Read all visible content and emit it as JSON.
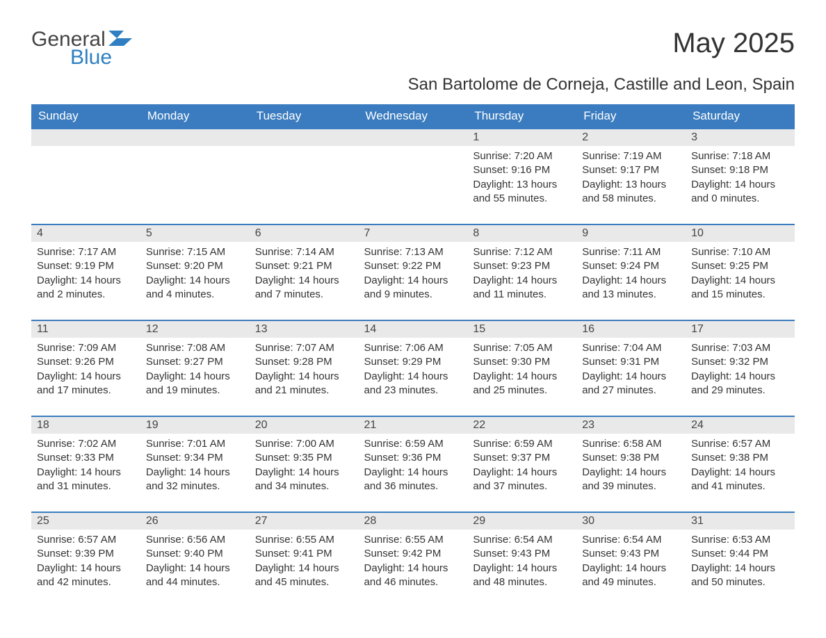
{
  "logo": {
    "text_general": "General",
    "text_blue": "Blue"
  },
  "title": "May 2025",
  "subtitle": "San Bartolome de Corneja, Castille and Leon, Spain",
  "colors": {
    "header_bg": "#3a7cbf",
    "header_text": "#ffffff",
    "daynum_bg": "#e9e9e9",
    "body_text": "#333333",
    "week_border": "#3a7cbf",
    "logo_gray": "#444444",
    "logo_blue": "#2f7fc2",
    "page_bg": "#ffffff"
  },
  "day_headers": [
    "Sunday",
    "Monday",
    "Tuesday",
    "Wednesday",
    "Thursday",
    "Friday",
    "Saturday"
  ],
  "weeks": [
    [
      {
        "day": "",
        "sunrise": "",
        "sunset": "",
        "daylight": ""
      },
      {
        "day": "",
        "sunrise": "",
        "sunset": "",
        "daylight": ""
      },
      {
        "day": "",
        "sunrise": "",
        "sunset": "",
        "daylight": ""
      },
      {
        "day": "",
        "sunrise": "",
        "sunset": "",
        "daylight": ""
      },
      {
        "day": "1",
        "sunrise": "Sunrise: 7:20 AM",
        "sunset": "Sunset: 9:16 PM",
        "daylight": "Daylight: 13 hours and 55 minutes."
      },
      {
        "day": "2",
        "sunrise": "Sunrise: 7:19 AM",
        "sunset": "Sunset: 9:17 PM",
        "daylight": "Daylight: 13 hours and 58 minutes."
      },
      {
        "day": "3",
        "sunrise": "Sunrise: 7:18 AM",
        "sunset": "Sunset: 9:18 PM",
        "daylight": "Daylight: 14 hours and 0 minutes."
      }
    ],
    [
      {
        "day": "4",
        "sunrise": "Sunrise: 7:17 AM",
        "sunset": "Sunset: 9:19 PM",
        "daylight": "Daylight: 14 hours and 2 minutes."
      },
      {
        "day": "5",
        "sunrise": "Sunrise: 7:15 AM",
        "sunset": "Sunset: 9:20 PM",
        "daylight": "Daylight: 14 hours and 4 minutes."
      },
      {
        "day": "6",
        "sunrise": "Sunrise: 7:14 AM",
        "sunset": "Sunset: 9:21 PM",
        "daylight": "Daylight: 14 hours and 7 minutes."
      },
      {
        "day": "7",
        "sunrise": "Sunrise: 7:13 AM",
        "sunset": "Sunset: 9:22 PM",
        "daylight": "Daylight: 14 hours and 9 minutes."
      },
      {
        "day": "8",
        "sunrise": "Sunrise: 7:12 AM",
        "sunset": "Sunset: 9:23 PM",
        "daylight": "Daylight: 14 hours and 11 minutes."
      },
      {
        "day": "9",
        "sunrise": "Sunrise: 7:11 AM",
        "sunset": "Sunset: 9:24 PM",
        "daylight": "Daylight: 14 hours and 13 minutes."
      },
      {
        "day": "10",
        "sunrise": "Sunrise: 7:10 AM",
        "sunset": "Sunset: 9:25 PM",
        "daylight": "Daylight: 14 hours and 15 minutes."
      }
    ],
    [
      {
        "day": "11",
        "sunrise": "Sunrise: 7:09 AM",
        "sunset": "Sunset: 9:26 PM",
        "daylight": "Daylight: 14 hours and 17 minutes."
      },
      {
        "day": "12",
        "sunrise": "Sunrise: 7:08 AM",
        "sunset": "Sunset: 9:27 PM",
        "daylight": "Daylight: 14 hours and 19 minutes."
      },
      {
        "day": "13",
        "sunrise": "Sunrise: 7:07 AM",
        "sunset": "Sunset: 9:28 PM",
        "daylight": "Daylight: 14 hours and 21 minutes."
      },
      {
        "day": "14",
        "sunrise": "Sunrise: 7:06 AM",
        "sunset": "Sunset: 9:29 PM",
        "daylight": "Daylight: 14 hours and 23 minutes."
      },
      {
        "day": "15",
        "sunrise": "Sunrise: 7:05 AM",
        "sunset": "Sunset: 9:30 PM",
        "daylight": "Daylight: 14 hours and 25 minutes."
      },
      {
        "day": "16",
        "sunrise": "Sunrise: 7:04 AM",
        "sunset": "Sunset: 9:31 PM",
        "daylight": "Daylight: 14 hours and 27 minutes."
      },
      {
        "day": "17",
        "sunrise": "Sunrise: 7:03 AM",
        "sunset": "Sunset: 9:32 PM",
        "daylight": "Daylight: 14 hours and 29 minutes."
      }
    ],
    [
      {
        "day": "18",
        "sunrise": "Sunrise: 7:02 AM",
        "sunset": "Sunset: 9:33 PM",
        "daylight": "Daylight: 14 hours and 31 minutes."
      },
      {
        "day": "19",
        "sunrise": "Sunrise: 7:01 AM",
        "sunset": "Sunset: 9:34 PM",
        "daylight": "Daylight: 14 hours and 32 minutes."
      },
      {
        "day": "20",
        "sunrise": "Sunrise: 7:00 AM",
        "sunset": "Sunset: 9:35 PM",
        "daylight": "Daylight: 14 hours and 34 minutes."
      },
      {
        "day": "21",
        "sunrise": "Sunrise: 6:59 AM",
        "sunset": "Sunset: 9:36 PM",
        "daylight": "Daylight: 14 hours and 36 minutes."
      },
      {
        "day": "22",
        "sunrise": "Sunrise: 6:59 AM",
        "sunset": "Sunset: 9:37 PM",
        "daylight": "Daylight: 14 hours and 37 minutes."
      },
      {
        "day": "23",
        "sunrise": "Sunrise: 6:58 AM",
        "sunset": "Sunset: 9:38 PM",
        "daylight": "Daylight: 14 hours and 39 minutes."
      },
      {
        "day": "24",
        "sunrise": "Sunrise: 6:57 AM",
        "sunset": "Sunset: 9:38 PM",
        "daylight": "Daylight: 14 hours and 41 minutes."
      }
    ],
    [
      {
        "day": "25",
        "sunrise": "Sunrise: 6:57 AM",
        "sunset": "Sunset: 9:39 PM",
        "daylight": "Daylight: 14 hours and 42 minutes."
      },
      {
        "day": "26",
        "sunrise": "Sunrise: 6:56 AM",
        "sunset": "Sunset: 9:40 PM",
        "daylight": "Daylight: 14 hours and 44 minutes."
      },
      {
        "day": "27",
        "sunrise": "Sunrise: 6:55 AM",
        "sunset": "Sunset: 9:41 PM",
        "daylight": "Daylight: 14 hours and 45 minutes."
      },
      {
        "day": "28",
        "sunrise": "Sunrise: 6:55 AM",
        "sunset": "Sunset: 9:42 PM",
        "daylight": "Daylight: 14 hours and 46 minutes."
      },
      {
        "day": "29",
        "sunrise": "Sunrise: 6:54 AM",
        "sunset": "Sunset: 9:43 PM",
        "daylight": "Daylight: 14 hours and 48 minutes."
      },
      {
        "day": "30",
        "sunrise": "Sunrise: 6:54 AM",
        "sunset": "Sunset: 9:43 PM",
        "daylight": "Daylight: 14 hours and 49 minutes."
      },
      {
        "day": "31",
        "sunrise": "Sunrise: 6:53 AM",
        "sunset": "Sunset: 9:44 PM",
        "daylight": "Daylight: 14 hours and 50 minutes."
      }
    ]
  ]
}
